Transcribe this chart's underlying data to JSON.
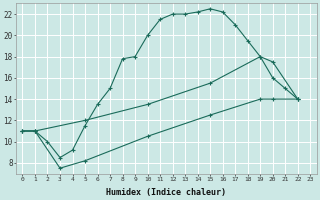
{
  "xlabel": "Humidex (Indice chaleur)",
  "bg_color": "#cce8e5",
  "grid_color": "#b8d8d5",
  "line_color": "#1a6b5a",
  "xlim": [
    -0.5,
    23.5
  ],
  "ylim": [
    7,
    23
  ],
  "yticks": [
    8,
    10,
    12,
    14,
    16,
    18,
    20,
    22
  ],
  "xticks": [
    0,
    1,
    2,
    3,
    4,
    5,
    6,
    7,
    8,
    9,
    10,
    11,
    12,
    13,
    14,
    15,
    16,
    17,
    18,
    19,
    20,
    21,
    22,
    23
  ],
  "curve1_x": [
    0,
    1,
    2,
    3,
    4,
    5,
    6,
    7,
    8,
    9,
    10,
    11,
    12,
    13,
    14,
    15,
    16,
    17,
    18,
    19,
    20,
    21,
    22
  ],
  "curve1_y": [
    11,
    11,
    10,
    8.5,
    9.2,
    11.5,
    13.5,
    15,
    17.8,
    18,
    20,
    21.5,
    22,
    22,
    22.2,
    22.5,
    22.2,
    21,
    19.5,
    18,
    16,
    15,
    14
  ],
  "curve2_x": [
    0,
    1,
    5,
    10,
    15,
    19,
    20,
    22
  ],
  "curve2_y": [
    11,
    11,
    12,
    13.5,
    15.5,
    18,
    17.5,
    14
  ],
  "curve3_x": [
    0,
    1,
    3,
    5,
    10,
    15,
    19,
    20,
    22
  ],
  "curve3_y": [
    11,
    11,
    7.5,
    8.2,
    10.5,
    12.5,
    14,
    14,
    14
  ]
}
